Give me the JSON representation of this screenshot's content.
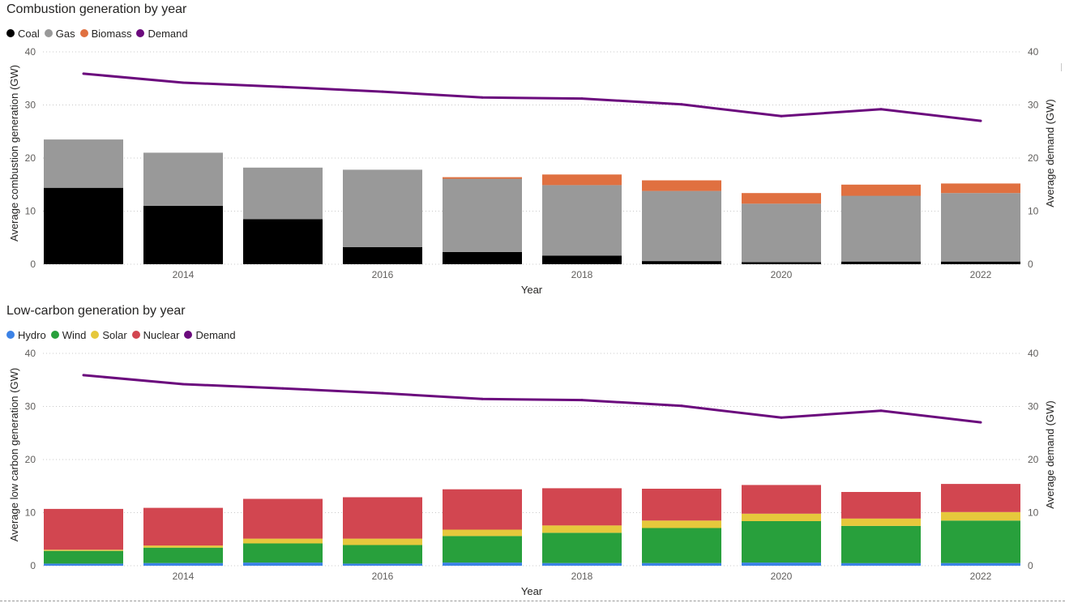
{
  "charts": [
    {
      "id": "top",
      "title": "Combustion generation by year",
      "legend": [
        {
          "label": "Coal",
          "color": "#000000"
        },
        {
          "label": "Gas",
          "color": "#999999"
        },
        {
          "label": "Biomass",
          "color": "#E07040"
        },
        {
          "label": "Demand",
          "color": "#6B0A7D"
        }
      ]
    },
    {
      "id": "bottom",
      "title": "Low-carbon generation by year",
      "legend": [
        {
          "label": "Hydro",
          "color": "#3C82E6"
        },
        {
          "label": "Wind",
          "color": "#28A03C"
        },
        {
          "label": "Solar",
          "color": "#E6C83C"
        },
        {
          "label": "Nuclear",
          "color": "#D24650"
        },
        {
          "label": "Demand",
          "color": "#6B0A7D"
        }
      ]
    }
  ],
  "chart_data": [
    {
      "type": "bar",
      "stacked": true,
      "title": "Combustion generation by year",
      "xlabel": "Year",
      "ylabel": "Average combustion generation (GW)",
      "y2label": "Average demand (GW)",
      "ylim": [
        0,
        40
      ],
      "y2lim": [
        0,
        40
      ],
      "yticks": [
        0,
        10,
        20,
        30,
        40
      ],
      "x": [
        2013,
        2014,
        2015,
        2016,
        2017,
        2018,
        2019,
        2020,
        2021,
        2022
      ],
      "xtick_labels": [
        "2014",
        "2016",
        "2018",
        "2020",
        "2022"
      ],
      "xtick_years": [
        2014,
        2016,
        2018,
        2020,
        2022
      ],
      "grid": true,
      "legend_position": "top-left",
      "series": [
        {
          "name": "Coal",
          "color": "#000000",
          "values": [
            14.4,
            11.0,
            8.5,
            3.2,
            2.3,
            1.6,
            0.6,
            0.4,
            0.5,
            0.5
          ]
        },
        {
          "name": "Gas",
          "color": "#999999",
          "values": [
            9.1,
            10.0,
            9.7,
            14.6,
            13.8,
            13.3,
            13.2,
            11.0,
            12.4,
            12.9
          ]
        },
        {
          "name": "Biomass",
          "color": "#E07040",
          "values": [
            0.0,
            0.0,
            0.0,
            0.0,
            0.3,
            2.0,
            2.0,
            2.0,
            2.1,
            1.8
          ]
        }
      ],
      "line_series": [
        {
          "name": "Demand",
          "color": "#6B0A7D",
          "values": [
            35.9,
            34.2,
            33.4,
            32.5,
            31.4,
            31.2,
            30.1,
            27.9,
            29.2,
            27.0
          ]
        }
      ]
    },
    {
      "type": "bar",
      "stacked": true,
      "title": "Low-carbon generation by year",
      "xlabel": "Year",
      "ylabel": "Average low carbon generation (GW)",
      "y2label": "Average demand (GW)",
      "ylim": [
        0,
        40
      ],
      "y2lim": [
        0,
        40
      ],
      "yticks": [
        0,
        10,
        20,
        30,
        40
      ],
      "x": [
        2013,
        2014,
        2015,
        2016,
        2017,
        2018,
        2019,
        2020,
        2021,
        2022
      ],
      "xtick_labels": [
        "2014",
        "2016",
        "2018",
        "2020",
        "2022"
      ],
      "xtick_years": [
        2014,
        2016,
        2018,
        2020,
        2022
      ],
      "grid": true,
      "legend_position": "top-left",
      "series": [
        {
          "name": "Hydro",
          "color": "#3C82E6",
          "values": [
            0.4,
            0.5,
            0.6,
            0.4,
            0.6,
            0.5,
            0.5,
            0.6,
            0.5,
            0.5
          ]
        },
        {
          "name": "Wind",
          "color": "#28A03C",
          "values": [
            2.4,
            2.9,
            3.6,
            3.5,
            5.0,
            5.7,
            6.6,
            7.8,
            7.0,
            8.0
          ]
        },
        {
          "name": "Solar",
          "color": "#E6C83C",
          "values": [
            0.2,
            0.4,
            0.9,
            1.2,
            1.2,
            1.4,
            1.4,
            1.4,
            1.4,
            1.6
          ]
        },
        {
          "name": "Nuclear",
          "color": "#D24650",
          "values": [
            7.7,
            7.1,
            7.5,
            7.8,
            7.6,
            7.0,
            6.0,
            5.4,
            5.0,
            5.3
          ]
        }
      ],
      "line_series": [
        {
          "name": "Demand",
          "color": "#6B0A7D",
          "values": [
            35.9,
            34.2,
            33.4,
            32.5,
            31.4,
            31.2,
            30.1,
            27.9,
            29.2,
            27.0
          ]
        }
      ]
    }
  ]
}
